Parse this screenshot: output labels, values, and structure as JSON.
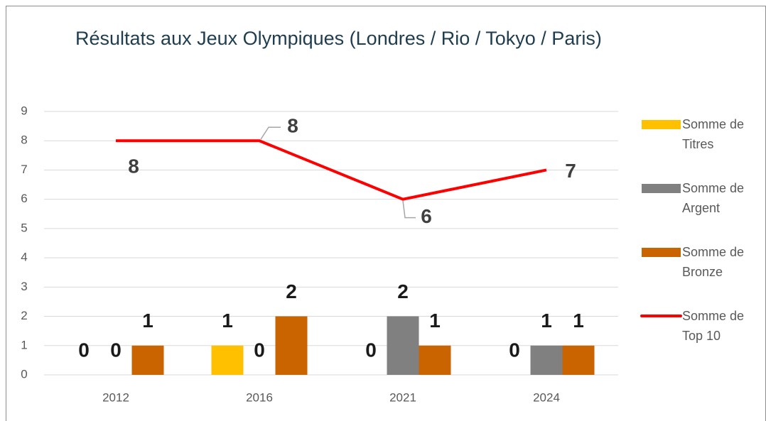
{
  "chart_data": {
    "type": "bar",
    "title": "Résultats aux Jeux Olympiques (Londres / Rio / Tokyo / Paris)",
    "categories": [
      "2012",
      "2016",
      "2021",
      "2024"
    ],
    "series": [
      {
        "name": "Somme de Titres",
        "color": "#ffc000",
        "values": [
          0,
          1,
          0,
          0
        ]
      },
      {
        "name": "Somme de Argent",
        "color": "#808080",
        "values": [
          0,
          0,
          2,
          1
        ]
      },
      {
        "name": "Somme de Bronze",
        "color": "#c96400",
        "values": [
          1,
          2,
          1,
          1
        ]
      },
      {
        "name": "Somme de Top 10",
        "color": "#ff0000",
        "type": "line",
        "values": [
          8,
          8,
          6,
          7
        ]
      }
    ],
    "ylim": [
      0,
      9
    ],
    "yticks": [
      0,
      1,
      2,
      3,
      4,
      5,
      6,
      7,
      8,
      9
    ],
    "grid": true,
    "legend": "right"
  }
}
